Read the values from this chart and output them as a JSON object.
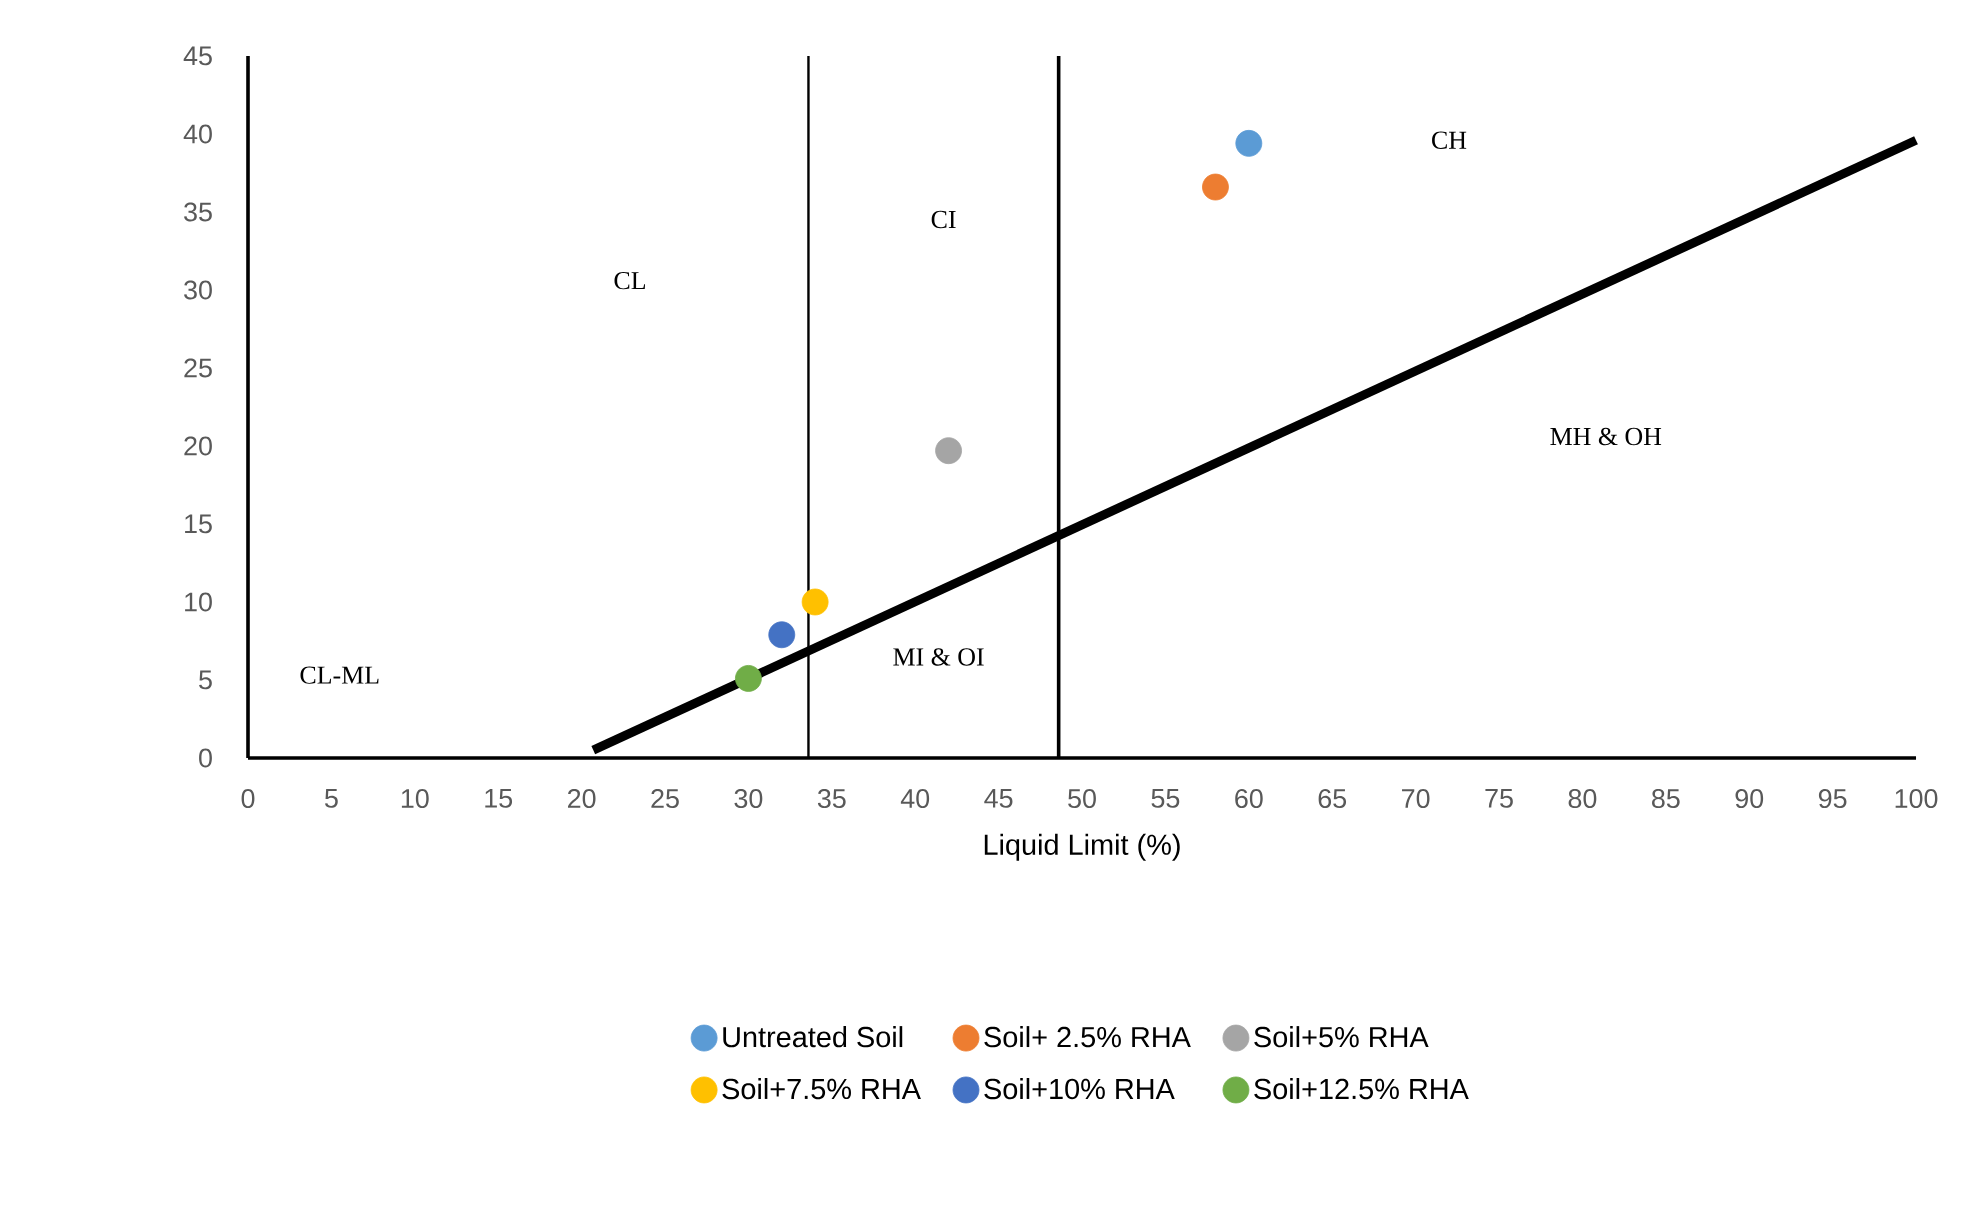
{
  "chart_data": {
    "type": "scatter",
    "xlabel": "Liquid Limit (%)",
    "xlim": [
      0,
      100
    ],
    "xticks": [
      0,
      5,
      10,
      15,
      20,
      25,
      30,
      35,
      40,
      45,
      50,
      55,
      60,
      65,
      70,
      75,
      80,
      85,
      90,
      95,
      100
    ],
    "ylim": [
      0,
      45
    ],
    "yticks": [
      0,
      5,
      10,
      15,
      20,
      25,
      30,
      35,
      40,
      45
    ],
    "grid": false,
    "legend": "bottom",
    "series": [
      {
        "name": "Untreated Soil",
        "color": "#5b9bd5",
        "marker": "circle",
        "x": [
          60.0
        ],
        "values": [
          39.4
        ]
      },
      {
        "name": "Soil+ 2.5% RHA",
        "color": "#ed7d31",
        "marker": "circle",
        "x": [
          58.0
        ],
        "values": [
          36.6
        ]
      },
      {
        "name": "Soil+5% RHA",
        "color": "#a5a5a5",
        "marker": "circle",
        "x": [
          42.0
        ],
        "values": [
          19.7
        ]
      },
      {
        "name": "Soil+7.5% RHA",
        "color": "#ffc000",
        "marker": "circle",
        "x": [
          34.0
        ],
        "values": [
          10.0
        ]
      },
      {
        "name": "Soil+10% RHA",
        "color": "#4472c4",
        "marker": "circle",
        "x": [
          32.0
        ],
        "values": [
          7.9
        ]
      },
      {
        "name": "Soil+12.5% RHA",
        "color": "#70ad47",
        "marker": "circle",
        "x": [
          30.0
        ],
        "values": [
          5.1
        ]
      },
      {
        "type": "line",
        "color": "#000000",
        "marker": "none",
        "x": [
          20.7,
          100
        ],
        "values": [
          0.5,
          39.6
        ]
      }
    ],
    "ref_lines": [
      {
        "axis": "x",
        "value": 33.6,
        "color": "#000000"
      },
      {
        "axis": "x",
        "value": 48.6,
        "color": "#000000"
      }
    ],
    "annotations": [
      "CL",
      "CI",
      "CH",
      "MH & OH",
      "MI & OI",
      "CL-ML"
    ]
  }
}
